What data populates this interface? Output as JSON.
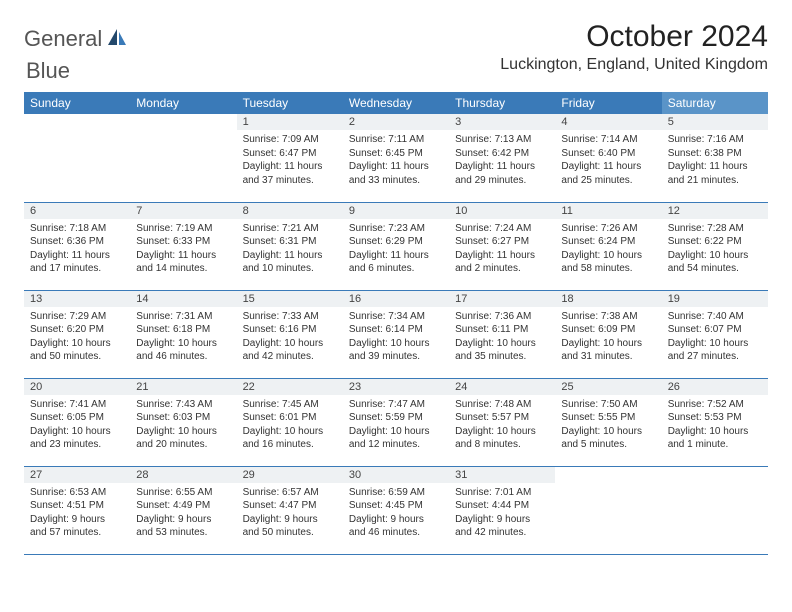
{
  "brand": {
    "text1": "General",
    "text2": "Blue"
  },
  "title": "October 2024",
  "location": "Luckington, England, United Kingdom",
  "colors": {
    "header_bg": "#3a7ab8",
    "header_bg_sat": "#5a94c8",
    "daynum_bg": "#eef1f3",
    "border": "#3a7ab8",
    "text": "#333333",
    "title_text": "#222222"
  },
  "dayNames": [
    "Sunday",
    "Monday",
    "Tuesday",
    "Wednesday",
    "Thursday",
    "Friday",
    "Saturday"
  ],
  "weeks": [
    [
      null,
      null,
      {
        "n": "1",
        "sr": "7:09 AM",
        "ss": "6:47 PM",
        "dl": "11 hours and 37 minutes."
      },
      {
        "n": "2",
        "sr": "7:11 AM",
        "ss": "6:45 PM",
        "dl": "11 hours and 33 minutes."
      },
      {
        "n": "3",
        "sr": "7:13 AM",
        "ss": "6:42 PM",
        "dl": "11 hours and 29 minutes."
      },
      {
        "n": "4",
        "sr": "7:14 AM",
        "ss": "6:40 PM",
        "dl": "11 hours and 25 minutes."
      },
      {
        "n": "5",
        "sr": "7:16 AM",
        "ss": "6:38 PM",
        "dl": "11 hours and 21 minutes."
      }
    ],
    [
      {
        "n": "6",
        "sr": "7:18 AM",
        "ss": "6:36 PM",
        "dl": "11 hours and 17 minutes."
      },
      {
        "n": "7",
        "sr": "7:19 AM",
        "ss": "6:33 PM",
        "dl": "11 hours and 14 minutes."
      },
      {
        "n": "8",
        "sr": "7:21 AM",
        "ss": "6:31 PM",
        "dl": "11 hours and 10 minutes."
      },
      {
        "n": "9",
        "sr": "7:23 AM",
        "ss": "6:29 PM",
        "dl": "11 hours and 6 minutes."
      },
      {
        "n": "10",
        "sr": "7:24 AM",
        "ss": "6:27 PM",
        "dl": "11 hours and 2 minutes."
      },
      {
        "n": "11",
        "sr": "7:26 AM",
        "ss": "6:24 PM",
        "dl": "10 hours and 58 minutes."
      },
      {
        "n": "12",
        "sr": "7:28 AM",
        "ss": "6:22 PM",
        "dl": "10 hours and 54 minutes."
      }
    ],
    [
      {
        "n": "13",
        "sr": "7:29 AM",
        "ss": "6:20 PM",
        "dl": "10 hours and 50 minutes."
      },
      {
        "n": "14",
        "sr": "7:31 AM",
        "ss": "6:18 PM",
        "dl": "10 hours and 46 minutes."
      },
      {
        "n": "15",
        "sr": "7:33 AM",
        "ss": "6:16 PM",
        "dl": "10 hours and 42 minutes."
      },
      {
        "n": "16",
        "sr": "7:34 AM",
        "ss": "6:14 PM",
        "dl": "10 hours and 39 minutes."
      },
      {
        "n": "17",
        "sr": "7:36 AM",
        "ss": "6:11 PM",
        "dl": "10 hours and 35 minutes."
      },
      {
        "n": "18",
        "sr": "7:38 AM",
        "ss": "6:09 PM",
        "dl": "10 hours and 31 minutes."
      },
      {
        "n": "19",
        "sr": "7:40 AM",
        "ss": "6:07 PM",
        "dl": "10 hours and 27 minutes."
      }
    ],
    [
      {
        "n": "20",
        "sr": "7:41 AM",
        "ss": "6:05 PM",
        "dl": "10 hours and 23 minutes."
      },
      {
        "n": "21",
        "sr": "7:43 AM",
        "ss": "6:03 PM",
        "dl": "10 hours and 20 minutes."
      },
      {
        "n": "22",
        "sr": "7:45 AM",
        "ss": "6:01 PM",
        "dl": "10 hours and 16 minutes."
      },
      {
        "n": "23",
        "sr": "7:47 AM",
        "ss": "5:59 PM",
        "dl": "10 hours and 12 minutes."
      },
      {
        "n": "24",
        "sr": "7:48 AM",
        "ss": "5:57 PM",
        "dl": "10 hours and 8 minutes."
      },
      {
        "n": "25",
        "sr": "7:50 AM",
        "ss": "5:55 PM",
        "dl": "10 hours and 5 minutes."
      },
      {
        "n": "26",
        "sr": "7:52 AM",
        "ss": "5:53 PM",
        "dl": "10 hours and 1 minute."
      }
    ],
    [
      {
        "n": "27",
        "sr": "6:53 AM",
        "ss": "4:51 PM",
        "dl": "9 hours and 57 minutes."
      },
      {
        "n": "28",
        "sr": "6:55 AM",
        "ss": "4:49 PM",
        "dl": "9 hours and 53 minutes."
      },
      {
        "n": "29",
        "sr": "6:57 AM",
        "ss": "4:47 PM",
        "dl": "9 hours and 50 minutes."
      },
      {
        "n": "30",
        "sr": "6:59 AM",
        "ss": "4:45 PM",
        "dl": "9 hours and 46 minutes."
      },
      {
        "n": "31",
        "sr": "7:01 AM",
        "ss": "4:44 PM",
        "dl": "9 hours and 42 minutes."
      },
      null,
      null
    ]
  ],
  "labels": {
    "sunrise": "Sunrise:",
    "sunset": "Sunset:",
    "daylight": "Daylight:"
  }
}
